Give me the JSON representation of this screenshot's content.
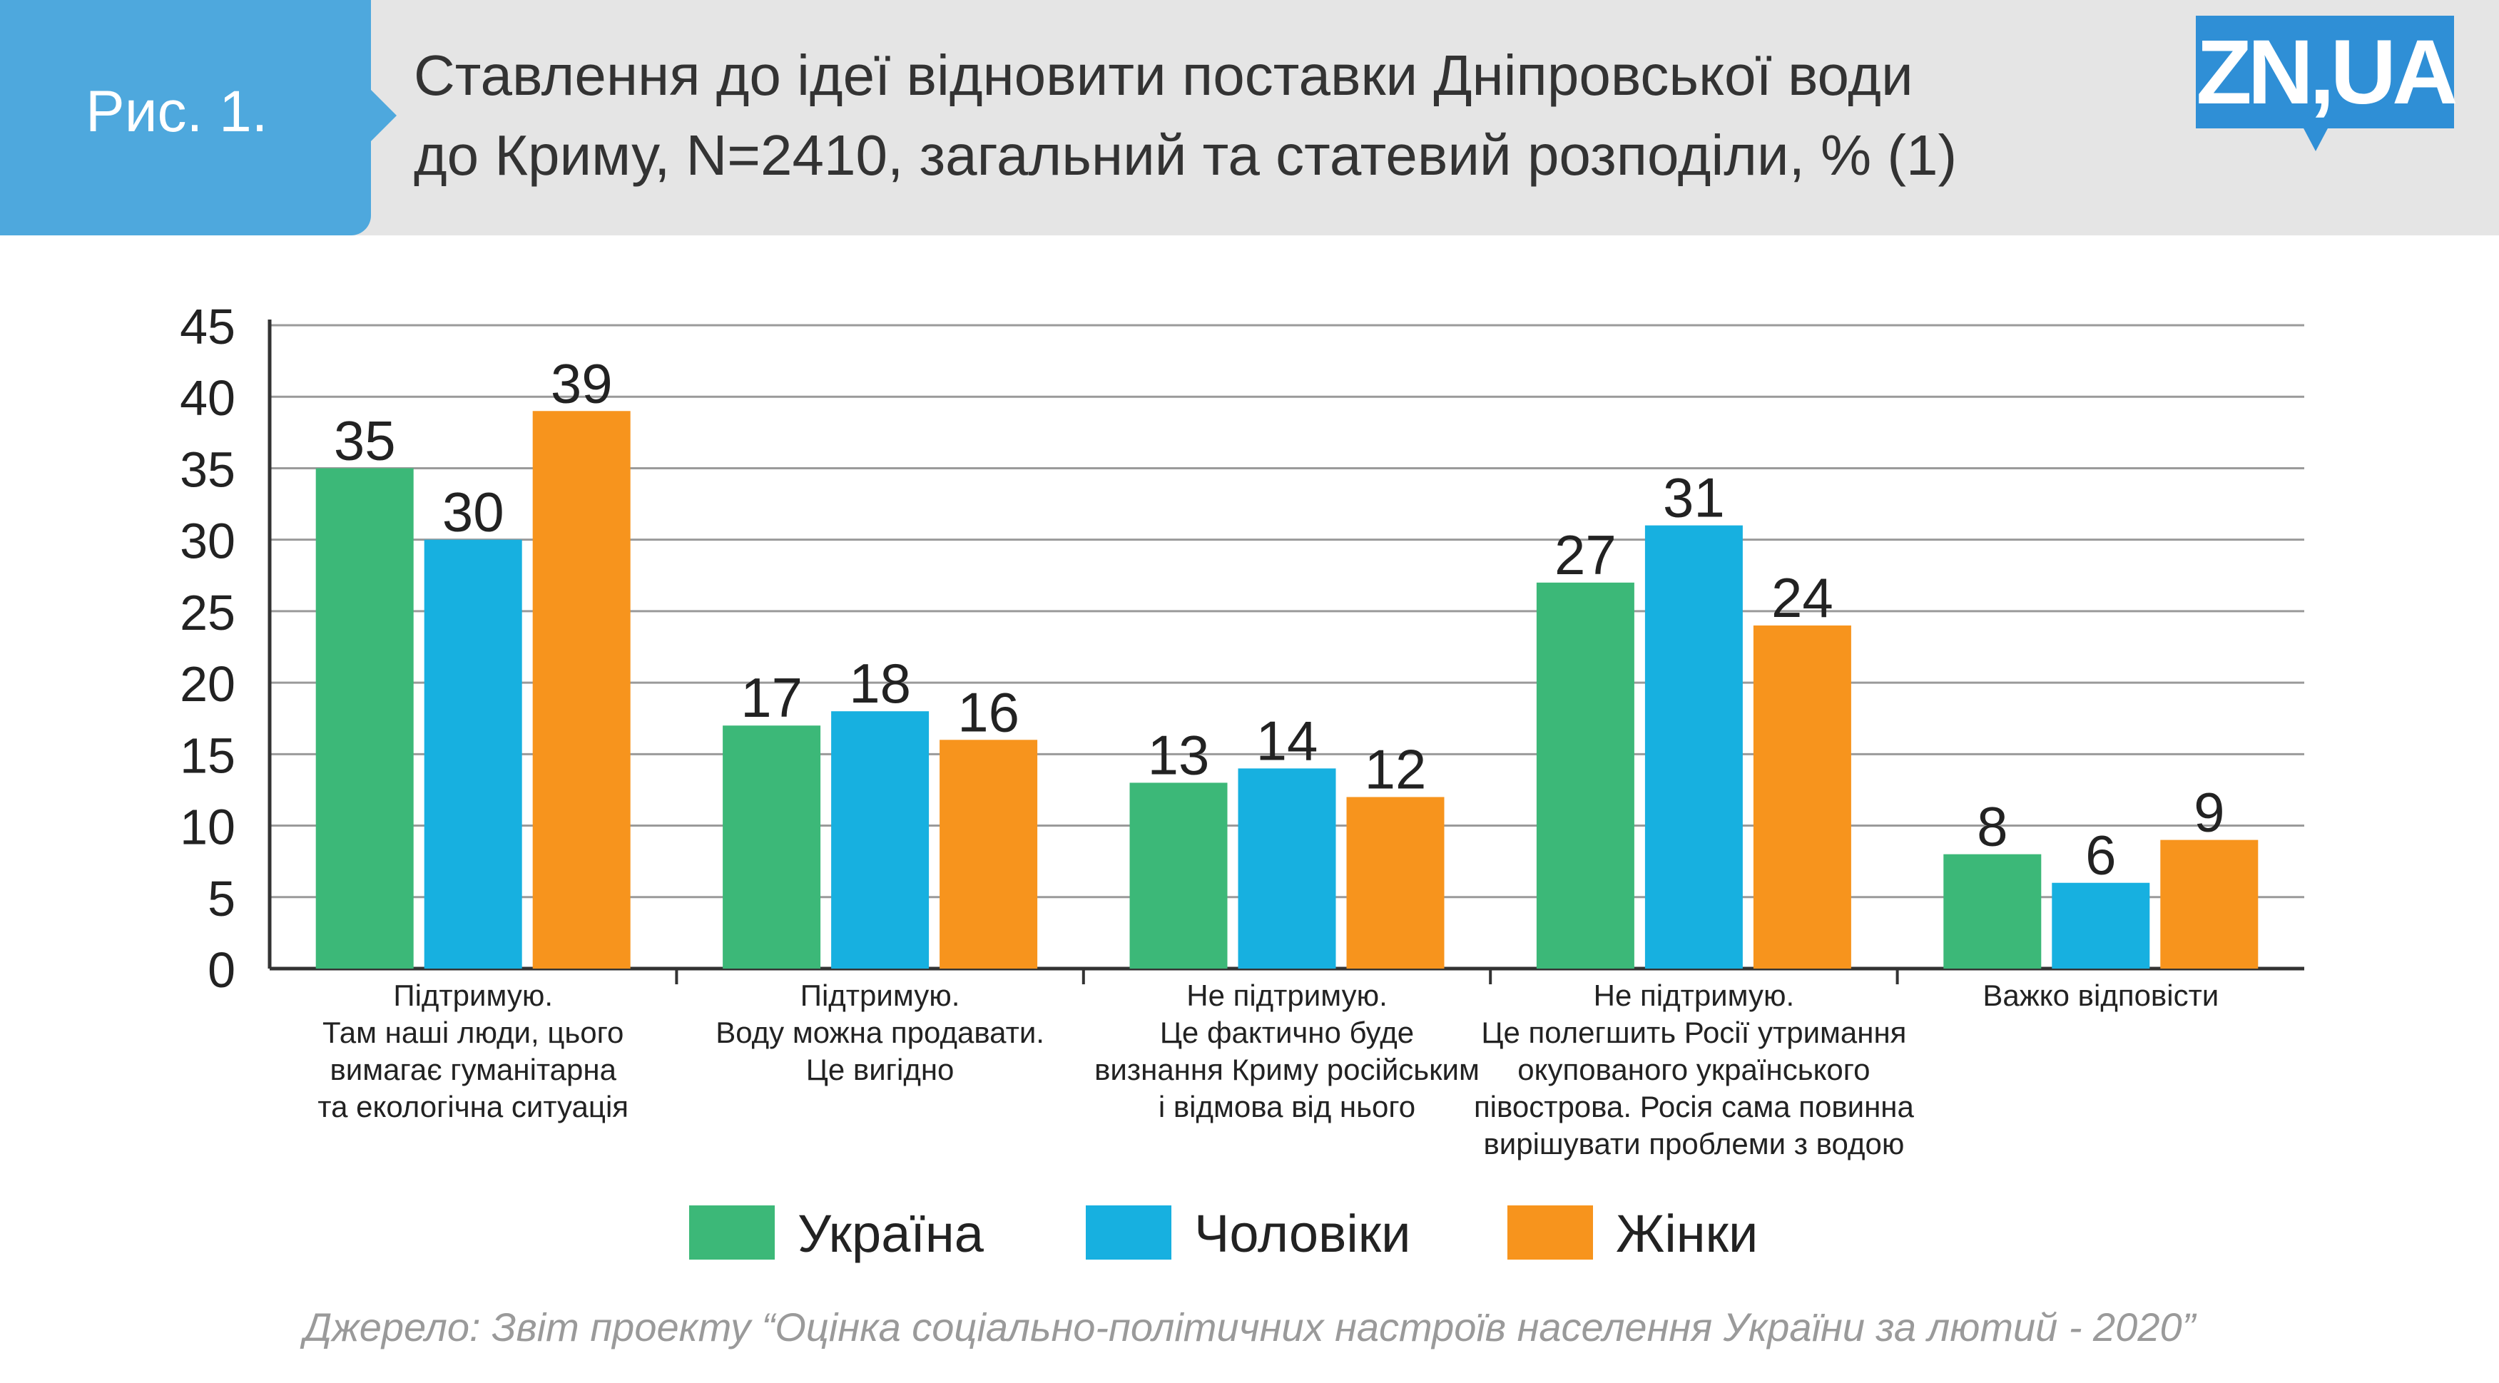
{
  "header": {
    "figure_label": "Рис. 1.",
    "title_line1": "Ставлення до ідеї відновити поставки Дніпровської води",
    "title_line2": "до Криму, N=2410, загальний та статевий розподіли, % (1)",
    "logo_text": "ZN,UA"
  },
  "chart_data": {
    "type": "bar",
    "categories": [
      [
        "Підтримую.",
        "Там наші люди, цього",
        "вимагає гуманітарна",
        "та екологічна ситуація"
      ],
      [
        "Підтримую.",
        "Воду можна продавати.",
        "Це вигідно"
      ],
      [
        "Не підтримую.",
        "Це фактично буде",
        "визнання Криму російським",
        "і відмова від нього"
      ],
      [
        "Не підтримую.",
        "Це полегшить Росії утримання",
        "окупованого українського",
        "півострова. Росія сама повинна",
        "вирішувати проблеми з водою"
      ],
      [
        "Важко відповісти"
      ]
    ],
    "series": [
      {
        "name": "Україна",
        "values": [
          35,
          17,
          13,
          27,
          8
        ],
        "color": "#3cb878"
      },
      {
        "name": "Чоловіки",
        "values": [
          30,
          18,
          14,
          31,
          6
        ],
        "color": "#17b0e0"
      },
      {
        "name": "Жінки",
        "values": [
          39,
          16,
          12,
          24,
          9
        ],
        "color": "#f7941d"
      }
    ],
    "ylim": [
      0,
      45
    ],
    "yticks": [
      0,
      5,
      10,
      15,
      20,
      25,
      30,
      35,
      40,
      45
    ],
    "grid": true,
    "legend_position": "bottom"
  },
  "source": "Джерело: Звіт проекту “Оцінка соціально-політичних настроїв населення України за лютий - 2020”"
}
